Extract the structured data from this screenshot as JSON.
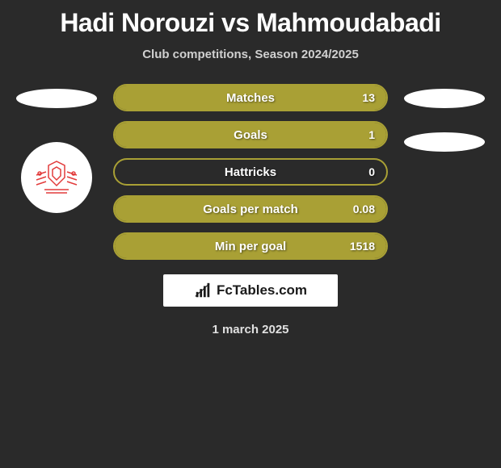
{
  "title": {
    "player1": "Hadi Norouzi",
    "vs": "vs",
    "player2": "Mahmoudabadi",
    "color": "#ffffff"
  },
  "subtitle": "Club competitions, Season 2024/2025",
  "stats": {
    "type": "bar",
    "bar_color": "#a9a035",
    "border_color": "#a9a035",
    "text_color": "#ffffff",
    "items": [
      {
        "label": "Matches",
        "value": "13",
        "fill_pct": 100
      },
      {
        "label": "Goals",
        "value": "1",
        "fill_pct": 100
      },
      {
        "label": "Hattricks",
        "value": "0",
        "fill_pct": 0
      },
      {
        "label": "Goals per match",
        "value": "0.08",
        "fill_pct": 100
      },
      {
        "label": "Min per goal",
        "value": "1518",
        "fill_pct": 100
      }
    ]
  },
  "side_ellipses": {
    "color": "#ffffff",
    "width": 100,
    "height": 24
  },
  "logo": {
    "background": "#ffffff",
    "stroke": "#e23b3b"
  },
  "brand": {
    "icon_name": "bar-chart-icon",
    "text": "FcTables.com",
    "background": "#ffffff",
    "text_color": "#1a1a1a"
  },
  "date": "1 march 2025",
  "background_color": "#2a2a2a"
}
